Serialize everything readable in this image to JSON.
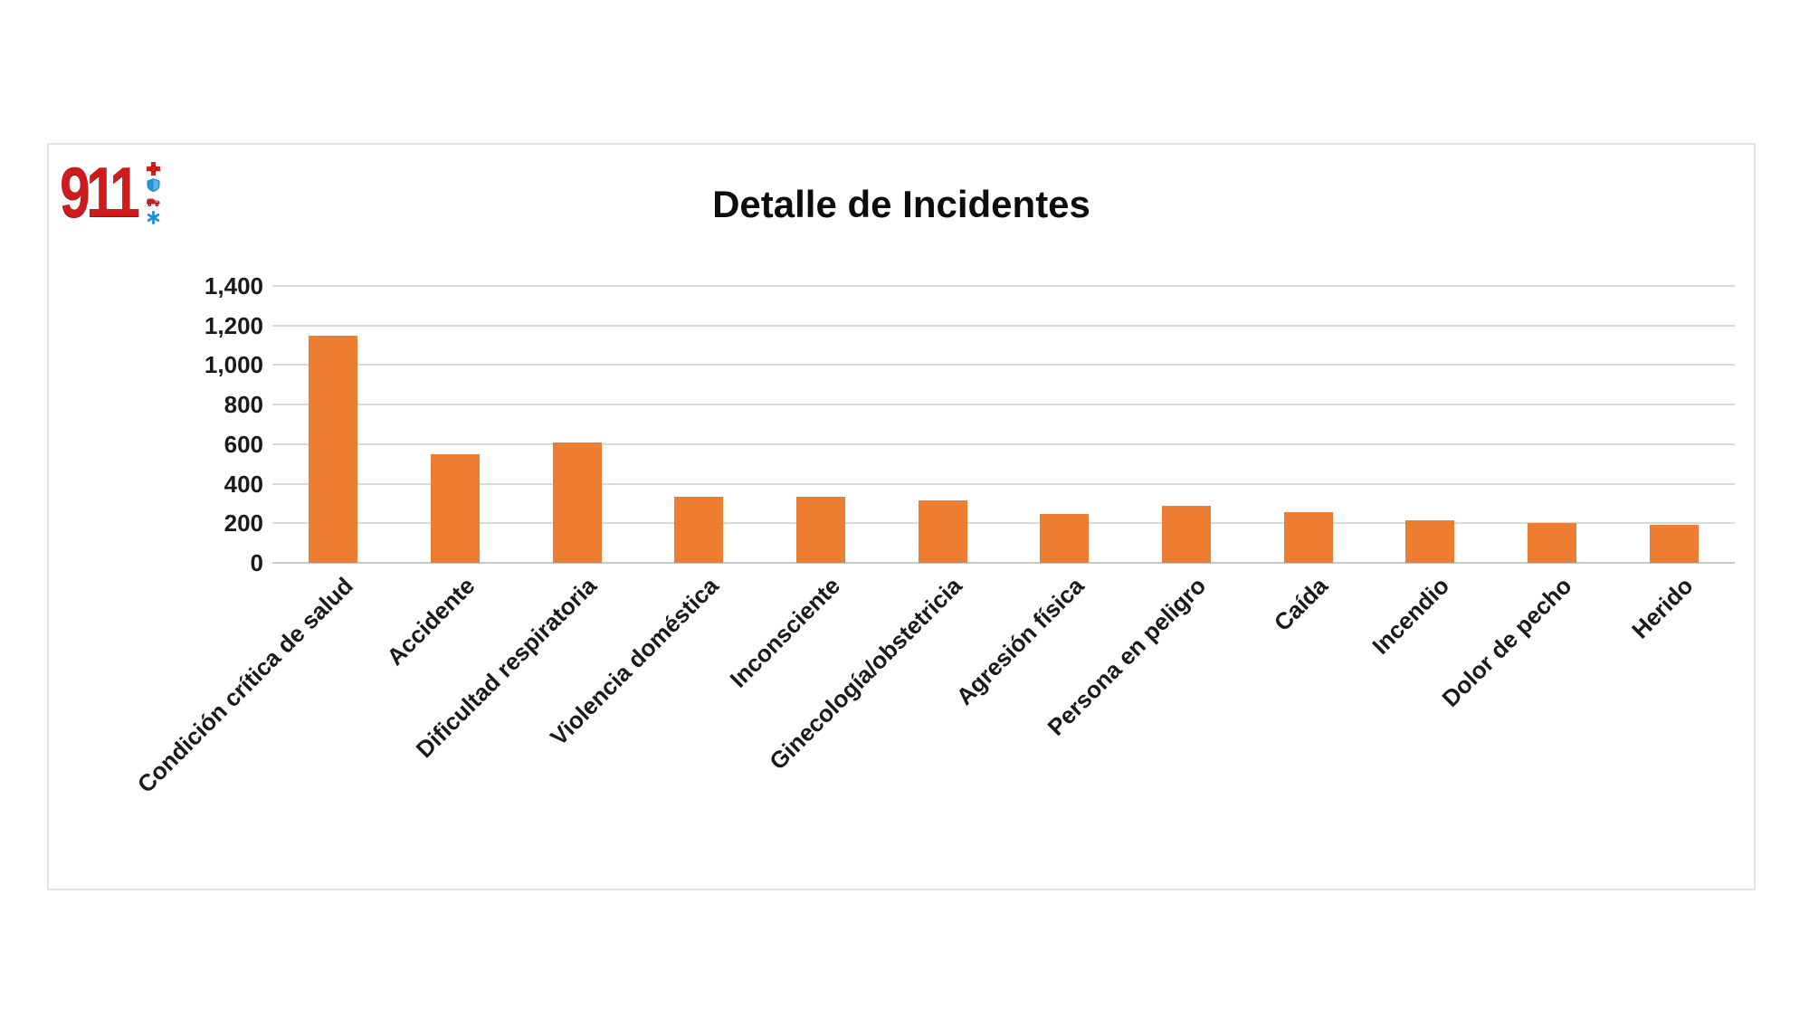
{
  "logo": {
    "text": "911",
    "color": "#ce1b1e",
    "icons": [
      "fire-cross-icon",
      "police-shield-icon",
      "fire-truck-icon",
      "star-of-life-icon"
    ],
    "icon_colors": {
      "cross": "#d6201c",
      "shield": "#2491d1",
      "truck": "#c31e25",
      "star": "#1e8fd5"
    }
  },
  "chart_data": {
    "type": "bar",
    "title": "Detalle de Incidentes",
    "categories": [
      "Condición crítica de salud",
      "Accidente",
      "Dificultad respiratoria",
      "Violencia doméstica",
      "Inconsciente",
      "Ginecología/obstetricia",
      "Agresión física",
      "Persona en peligro",
      "Caída",
      "Incendio",
      "Dolor de pecho",
      "Herido"
    ],
    "values": [
      1150,
      550,
      610,
      335,
      335,
      315,
      245,
      290,
      255,
      215,
      200,
      190
    ],
    "xlabel": "",
    "ylabel": "",
    "ylim": [
      0,
      1400
    ],
    "ytick_step": 200,
    "ytick_labels": [
      "0",
      "200",
      "400",
      "600",
      "800",
      "1,000",
      "1,200",
      "1,400"
    ],
    "bar_color": "#ed7d31",
    "gridline_color": "#d9d9d9",
    "grid": "horizontal-only",
    "legend_position": "none",
    "x_label_rotation_deg": -45
  }
}
